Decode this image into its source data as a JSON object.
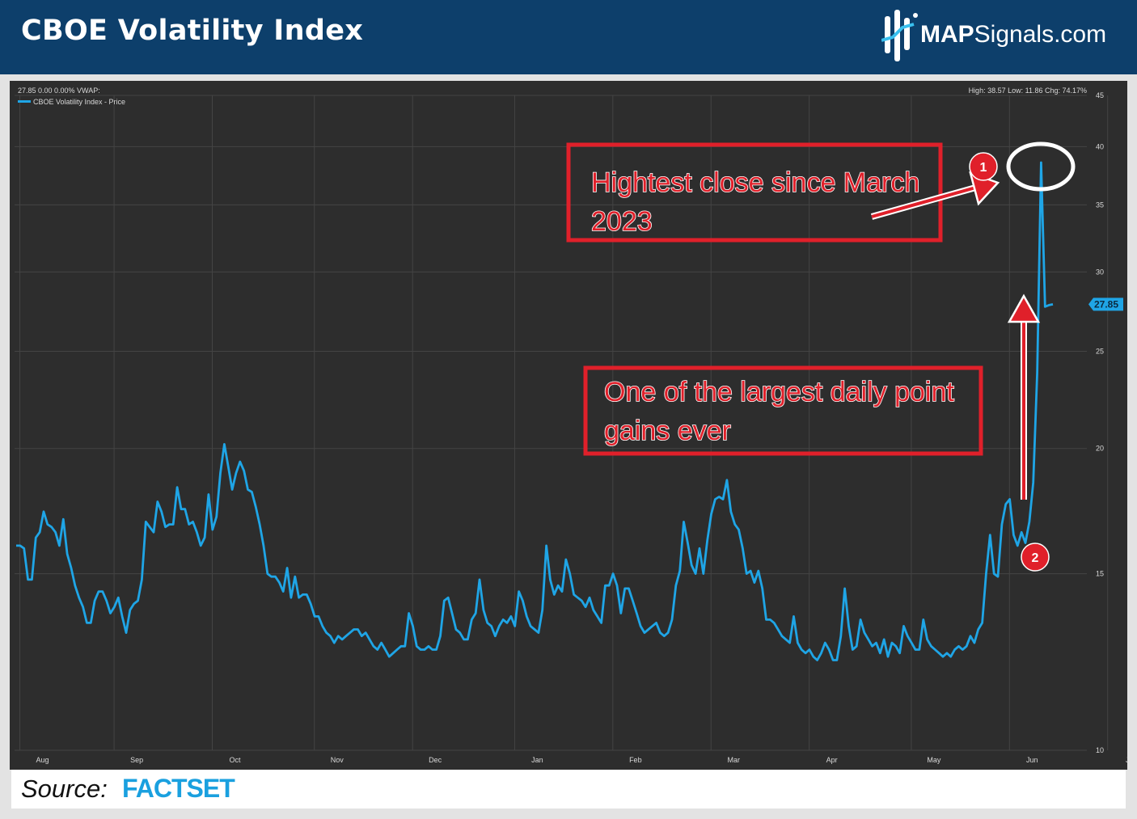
{
  "header": {
    "title": "CBOE Volatility Index",
    "logo_bold": "MAP",
    "logo_rest": "Signals.com"
  },
  "footer": {
    "source_label": "Source:",
    "source_brand": "FACTSET"
  },
  "colors": {
    "header_bg": "#0d3f6b",
    "chart_bg": "#2d2d2d",
    "line": "#1fa5e6",
    "annotation": "#e0202a"
  },
  "chart_data": {
    "type": "line",
    "title": "",
    "xlabel": "",
    "ylabel": "",
    "y_scale": "log",
    "ylim": [
      10,
      45
    ],
    "y_ticks": [
      10,
      15,
      20,
      25,
      30,
      35,
      40,
      45
    ],
    "x_tick_labels": [
      "Aug",
      "Sep",
      "Oct",
      "Nov",
      "Dec",
      "Jan",
      "Feb",
      "Mar",
      "Apr",
      "May",
      "Jun",
      "Jul"
    ],
    "grid": true,
    "header_left": "27.85 0.00 0.00%  VWAP:",
    "header_right": "High: 38.57 Low: 11.86 Chg: 74.17%",
    "legend": "CBOE Volatility Index - Price",
    "last_value_label": "27.85",
    "series": [
      {
        "name": "CBOE Volatility Index - Price",
        "values": [
          16.0,
          16.0,
          15.9,
          14.8,
          14.8,
          16.3,
          16.5,
          17.3,
          16.8,
          16.7,
          16.5,
          16.0,
          17.0,
          15.7,
          15.2,
          14.6,
          14.2,
          13.9,
          13.4,
          13.4,
          14.1,
          14.4,
          14.4,
          14.1,
          13.7,
          13.9,
          14.2,
          13.6,
          13.1,
          13.8,
          14.0,
          14.1,
          14.8,
          16.9,
          16.7,
          16.5,
          17.7,
          17.3,
          16.7,
          16.8,
          16.8,
          18.3,
          17.4,
          17.4,
          16.8,
          16.9,
          16.5,
          16.0,
          16.3,
          18.0,
          16.6,
          17.1,
          18.9,
          20.2,
          19.2,
          18.2,
          18.9,
          19.4,
          19.0,
          18.2,
          18.1,
          17.5,
          16.8,
          16.0,
          15.0,
          14.9,
          14.9,
          14.7,
          14.4,
          15.2,
          14.2,
          14.9,
          14.2,
          14.3,
          14.3,
          14.0,
          13.6,
          13.6,
          13.3,
          13.1,
          13.0,
          12.8,
          13.0,
          12.9,
          13.0,
          13.1,
          13.2,
          13.2,
          13.0,
          13.1,
          12.9,
          12.7,
          12.6,
          12.8,
          12.6,
          12.4,
          12.5,
          12.6,
          12.7,
          12.7,
          13.7,
          13.3,
          12.7,
          12.6,
          12.6,
          12.7,
          12.6,
          12.6,
          13.0,
          14.1,
          14.2,
          13.7,
          13.2,
          13.1,
          12.9,
          12.9,
          13.5,
          13.7,
          14.8,
          13.8,
          13.4,
          13.3,
          13.0,
          13.3,
          13.5,
          13.4,
          13.6,
          13.3,
          14.4,
          14.1,
          13.6,
          13.3,
          13.2,
          13.1,
          13.8,
          16.0,
          14.8,
          14.3,
          14.6,
          14.4,
          15.5,
          15.0,
          14.3,
          14.2,
          14.1,
          13.9,
          14.2,
          13.8,
          13.6,
          13.4,
          14.6,
          14.6,
          15.0,
          14.6,
          13.7,
          14.5,
          14.5,
          14.1,
          13.7,
          13.3,
          13.1,
          13.2,
          13.3,
          13.4,
          13.1,
          13.0,
          13.1,
          13.5,
          14.6,
          15.1,
          16.9,
          16.1,
          15.3,
          15.0,
          15.9,
          15.0,
          16.2,
          17.2,
          17.8,
          17.9,
          17.8,
          18.6,
          17.3,
          16.8,
          16.6,
          15.9,
          15.0,
          15.1,
          14.7,
          15.1,
          14.5,
          13.5,
          13.5,
          13.4,
          13.2,
          13.0,
          12.9,
          12.8,
          13.6,
          12.8,
          12.6,
          12.5,
          12.6,
          12.4,
          12.3,
          12.5,
          12.8,
          12.6,
          12.3,
          12.3,
          13.0,
          14.5,
          13.3,
          12.6,
          12.7,
          13.5,
          13.1,
          12.9,
          12.7,
          12.8,
          12.5,
          12.9,
          12.4,
          12.8,
          12.7,
          12.5,
          13.3,
          13.0,
          12.8,
          12.6,
          12.6,
          13.5,
          12.9,
          12.7,
          12.6,
          12.5,
          12.4,
          12.5,
          12.4,
          12.6,
          12.7,
          12.6,
          12.7,
          13.0,
          12.8,
          13.2,
          13.4,
          15.0,
          16.4,
          15.0,
          14.9,
          16.8,
          17.6,
          17.8,
          16.4,
          16.0,
          16.5,
          16.1,
          16.9,
          18.5,
          23.8,
          38.57,
          27.7,
          27.8,
          27.85
        ]
      }
    ]
  },
  "annotations": [
    {
      "number": "1",
      "text": "Hightest close since March 2023"
    },
    {
      "number": "2",
      "text": "One of the largest daily point gains ever"
    }
  ]
}
